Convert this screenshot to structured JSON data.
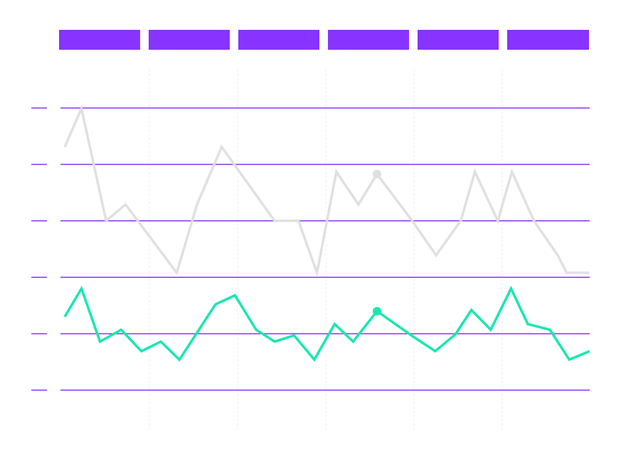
{
  "chart_data": {
    "type": "line",
    "xlim": [
      0,
      6
    ],
    "xticks": [
      1,
      2,
      3,
      4,
      5
    ],
    "ylim": [
      0,
      5
    ],
    "yticks": [
      0,
      1,
      2,
      3,
      4,
      5
    ],
    "grid": true,
    "grid_color": "#8833ff",
    "series": [
      {
        "color": "#e0e0e0",
        "highlight": 12,
        "x": [
          0.04,
          0.23,
          0.51,
          0.73,
          1.31,
          1.54,
          1.82,
          2.42,
          2.69,
          2.9,
          3.12,
          3.37,
          3.58,
          3.98,
          4.25,
          4.53,
          4.69,
          4.95,
          5.11,
          5.36,
          5.63,
          5.73,
          5.99
        ],
        "values": [
          4.31,
          4.99,
          3.0,
          3.29,
          2.08,
          3.29,
          4.31,
          3.0,
          3.0,
          2.08,
          3.87,
          3.29,
          3.83,
          3.0,
          2.39,
          3.0,
          3.87,
          3.0,
          3.87,
          3.0,
          2.39,
          2.08,
          2.08
        ]
      },
      {
        "color": "#17e8b0",
        "highlight": 15,
        "x": [
          0.04,
          0.23,
          0.44,
          0.68,
          0.91,
          1.13,
          1.34,
          1.75,
          1.97,
          2.21,
          2.42,
          2.64,
          2.87,
          3.1,
          3.31,
          3.58,
          3.98,
          4.24,
          4.47,
          4.65,
          4.87,
          5.1,
          5.29,
          5.54,
          5.76,
          5.99
        ],
        "values": [
          1.3,
          1.8,
          0.86,
          1.07,
          0.69,
          0.86,
          0.54,
          1.52,
          1.68,
          1.07,
          0.86,
          0.97,
          0.54,
          1.17,
          0.86,
          1.4,
          0.96,
          0.69,
          0.99,
          1.42,
          1.07,
          1.8,
          1.17,
          1.07,
          0.54,
          0.69
        ]
      }
    ]
  }
}
